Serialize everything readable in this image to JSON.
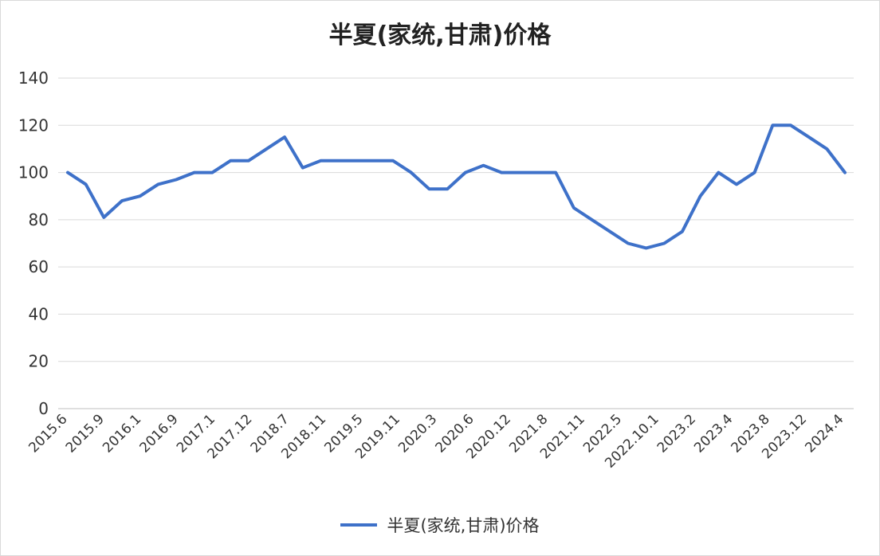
{
  "chart_data": {
    "type": "line",
    "title": "半夏(家统,甘肃)价格",
    "xlabel": "",
    "ylabel": "",
    "ylim": [
      0,
      140
    ],
    "yticks": [
      0,
      20,
      40,
      60,
      80,
      100,
      120,
      140
    ],
    "grid": true,
    "legend": "bottom",
    "colors": {
      "line": "#3e71c9",
      "grid": "#d9d9d9"
    },
    "x_tick_labels": [
      "2015.6",
      "2015.9",
      "2016.1",
      "2016.9",
      "2017.1",
      "2017.12",
      "2018.7",
      "2018.11",
      "2019.5",
      "2019.11",
      "2020.3",
      "2020.6",
      "2020.12",
      "2021.8",
      "2021.11",
      "2022.5",
      "2022.10.1",
      "2023.2",
      "2023.4",
      "2023.8",
      "2023.12",
      "2024.4"
    ],
    "series": [
      {
        "name": "半夏(家统,甘肃)价格",
        "values": [
          100,
          95,
          81,
          88,
          90,
          95,
          97,
          100,
          100,
          105,
          105,
          110,
          115,
          102,
          105,
          105,
          105,
          105,
          105,
          100,
          93,
          93,
          100,
          103,
          100,
          100,
          100,
          100,
          85,
          80,
          75,
          70,
          68,
          70,
          75,
          90,
          100,
          95,
          100,
          120,
          120,
          115,
          110,
          100
        ]
      }
    ]
  }
}
